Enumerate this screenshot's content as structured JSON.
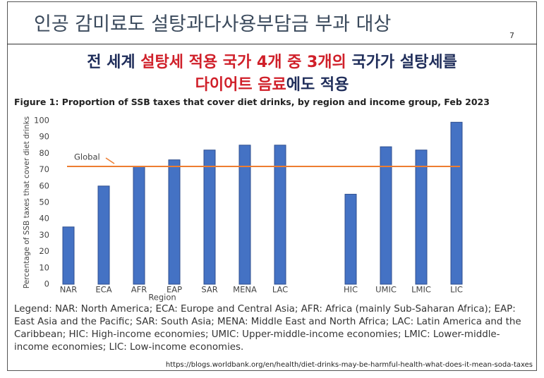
{
  "header": {
    "title": "인공 감미료도 설탕과다사용부담금 부과 대상",
    "page_number": "7"
  },
  "headline": {
    "lines": [
      [
        {
          "text": "전 세계 ",
          "color": "#1f2d5a"
        },
        {
          "text": "설탕세 적용 국가 4개 중 3개의",
          "color": "#d0202a"
        },
        {
          "text": " 국가가 설탕세를",
          "color": "#1f2d5a"
        }
      ],
      [
        {
          "text": "다이어트 음료",
          "color": "#d0202a"
        },
        {
          "text": "에도 적용",
          "color": "#1f2d5a"
        }
      ]
    ]
  },
  "chart_data": {
    "type": "bar",
    "title": "Figure 1: Proportion of SSB taxes that cover diet drinks, by region and income group, Feb 2023",
    "y_label": "Percentage of SSB taxes that cover diet drinks",
    "x_label": "Region",
    "categories": [
      "NAR",
      "ECA",
      "AFR",
      "EAP",
      "SAR",
      "MENA",
      "LAC",
      null,
      "HIC",
      "UMIC",
      "LMIC",
      "LIC"
    ],
    "values": [
      35,
      60,
      72,
      76,
      82,
      85,
      85,
      null,
      55,
      84,
      82,
      99
    ],
    "color": "#4472c4",
    "ylim": [
      0,
      100
    ],
    "yticks": [
      0,
      10,
      20,
      30,
      40,
      50,
      60,
      70,
      80,
      90,
      100
    ],
    "grid": false,
    "reference_line": {
      "label": "Global",
      "value": 72,
      "color": "#ed7d31"
    }
  },
  "legend_text": "Legend: NAR: North America; ECA: Europe and Central Asia; AFR: Africa (mainly Sub-Saharan Africa); EAP: East Asia and the Pacific; SAR: South Asia; MENA: Middle East and North Africa; LAC: Latin America and the Caribbean; HIC: High-income economies; UMIC: Upper-middle-income economies; LMIC: Lower-middle-income economies; LIC: Low-income economies.",
  "source": "https://blogs.worldbank.org/en/health/diet-drinks-may-be-harmful-health-what-does-it-mean-soda-taxes"
}
